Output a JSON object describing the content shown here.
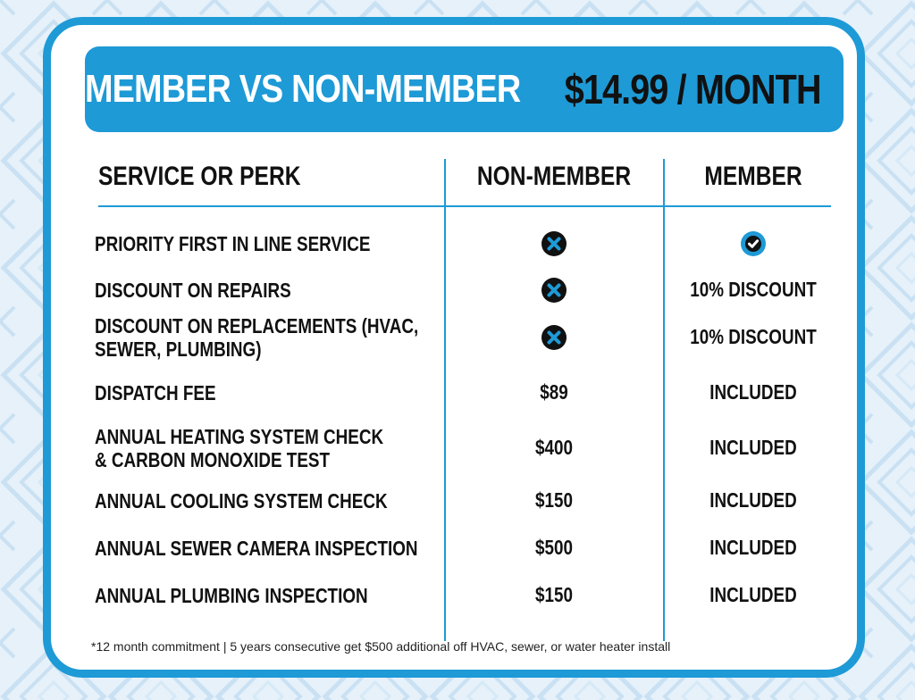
{
  "header": {
    "title": "MEMBER VS NON-MEMBER",
    "price": "$14.99 / MONTH"
  },
  "columns": {
    "service": "SERVICE OR PERK",
    "non_member": "NON-MEMBER",
    "member": "MEMBER"
  },
  "rows": [
    {
      "service_lines": [
        "PRIORITY FIRST IN LINE SERVICE"
      ],
      "non_member": "",
      "non_member_icon": "x-circle-icon",
      "member": "",
      "member_icon": "check-circle-icon"
    },
    {
      "service_lines": [
        "DISCOUNT ON REPAIRS"
      ],
      "non_member": "",
      "non_member_icon": "x-circle-icon",
      "member": "10% DISCOUNT",
      "member_icon": ""
    },
    {
      "service_lines": [
        "DISCOUNT ON REPLACEMENTS (HVAC,",
        "SEWER, PLUMBING)"
      ],
      "non_member": "",
      "non_member_icon": "x-circle-icon",
      "member": "10% DISCOUNT",
      "member_icon": ""
    },
    {
      "service_lines": [
        "DISPATCH FEE"
      ],
      "non_member": "$89",
      "non_member_icon": "",
      "member": "INCLUDED",
      "member_icon": ""
    },
    {
      "service_lines": [
        "ANNUAL HEATING SYSTEM CHECK",
        "& CARBON MONOXIDE TEST"
      ],
      "non_member": "$400",
      "non_member_icon": "",
      "member": "INCLUDED",
      "member_icon": ""
    },
    {
      "service_lines": [
        "ANNUAL COOLING SYSTEM CHECK"
      ],
      "non_member": "$150",
      "non_member_icon": "",
      "member": "INCLUDED",
      "member_icon": ""
    },
    {
      "service_lines": [
        "ANNUAL SEWER CAMERA INSPECTION"
      ],
      "non_member": "$500",
      "non_member_icon": "",
      "member": "INCLUDED",
      "member_icon": ""
    },
    {
      "service_lines": [
        "ANNUAL PLUMBING INSPECTION"
      ],
      "non_member": "$150",
      "non_member_icon": "",
      "member": "INCLUDED",
      "member_icon": ""
    }
  ],
  "footnote": "*12 month commitment | 5 years consecutive get $500 additional off HVAC, sewer, or water heater install",
  "colors": {
    "accent": "#1e9ad6",
    "icon_dark": "#111111",
    "background_pattern": "#c9e1f2",
    "background": "#e6f1fa"
  }
}
